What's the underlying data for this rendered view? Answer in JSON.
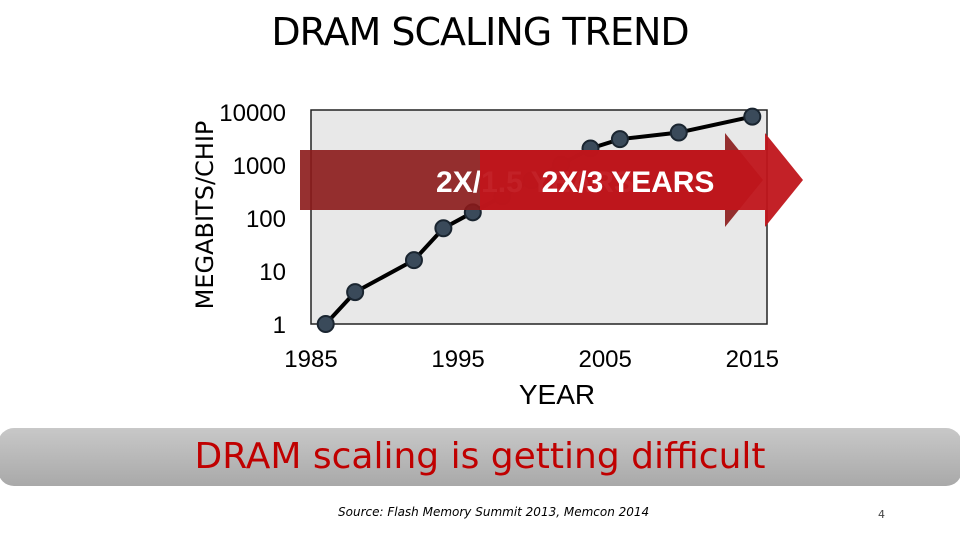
{
  "slide": {
    "title": "DRAM SCALING TREND",
    "banner": "DRAM scaling is getting difficult",
    "source": "Source: Flash Memory Summit 2013, Memcon 2014",
    "page_number": "4"
  },
  "chart_data": {
    "type": "line",
    "title": "DRAM SCALING TREND",
    "xlabel": "YEAR",
    "ylabel": "MEGABITS/CHIP",
    "yscale": "log",
    "xlim": [
      1985,
      2016
    ],
    "ylim": [
      1,
      10000
    ],
    "x_ticks": [
      "1985",
      "1995",
      "2005",
      "2015"
    ],
    "y_ticks": [
      "1",
      "10",
      "100",
      "1000",
      "10000"
    ],
    "grid": false,
    "plot_background": "#e8e8e8",
    "line_color": "#000000",
    "marker_color": "#3a4a5a",
    "series": [
      {
        "x": [
          1986,
          1988,
          1992,
          1994,
          1996,
          1998,
          2000,
          2002,
          2004,
          2006,
          2010,
          2015
        ],
        "values": [
          1,
          4,
          16,
          64,
          128,
          256,
          512,
          1024,
          2048,
          3072,
          4096,
          8192
        ]
      }
    ],
    "annotations": [
      {
        "text": "2X/1.5 YEARS",
        "color": "#8b1a1a",
        "text_color": "#ffffff"
      },
      {
        "text": "2X/3 YEARS",
        "color": "#c0151b",
        "text_color": "#ffffff"
      }
    ]
  }
}
